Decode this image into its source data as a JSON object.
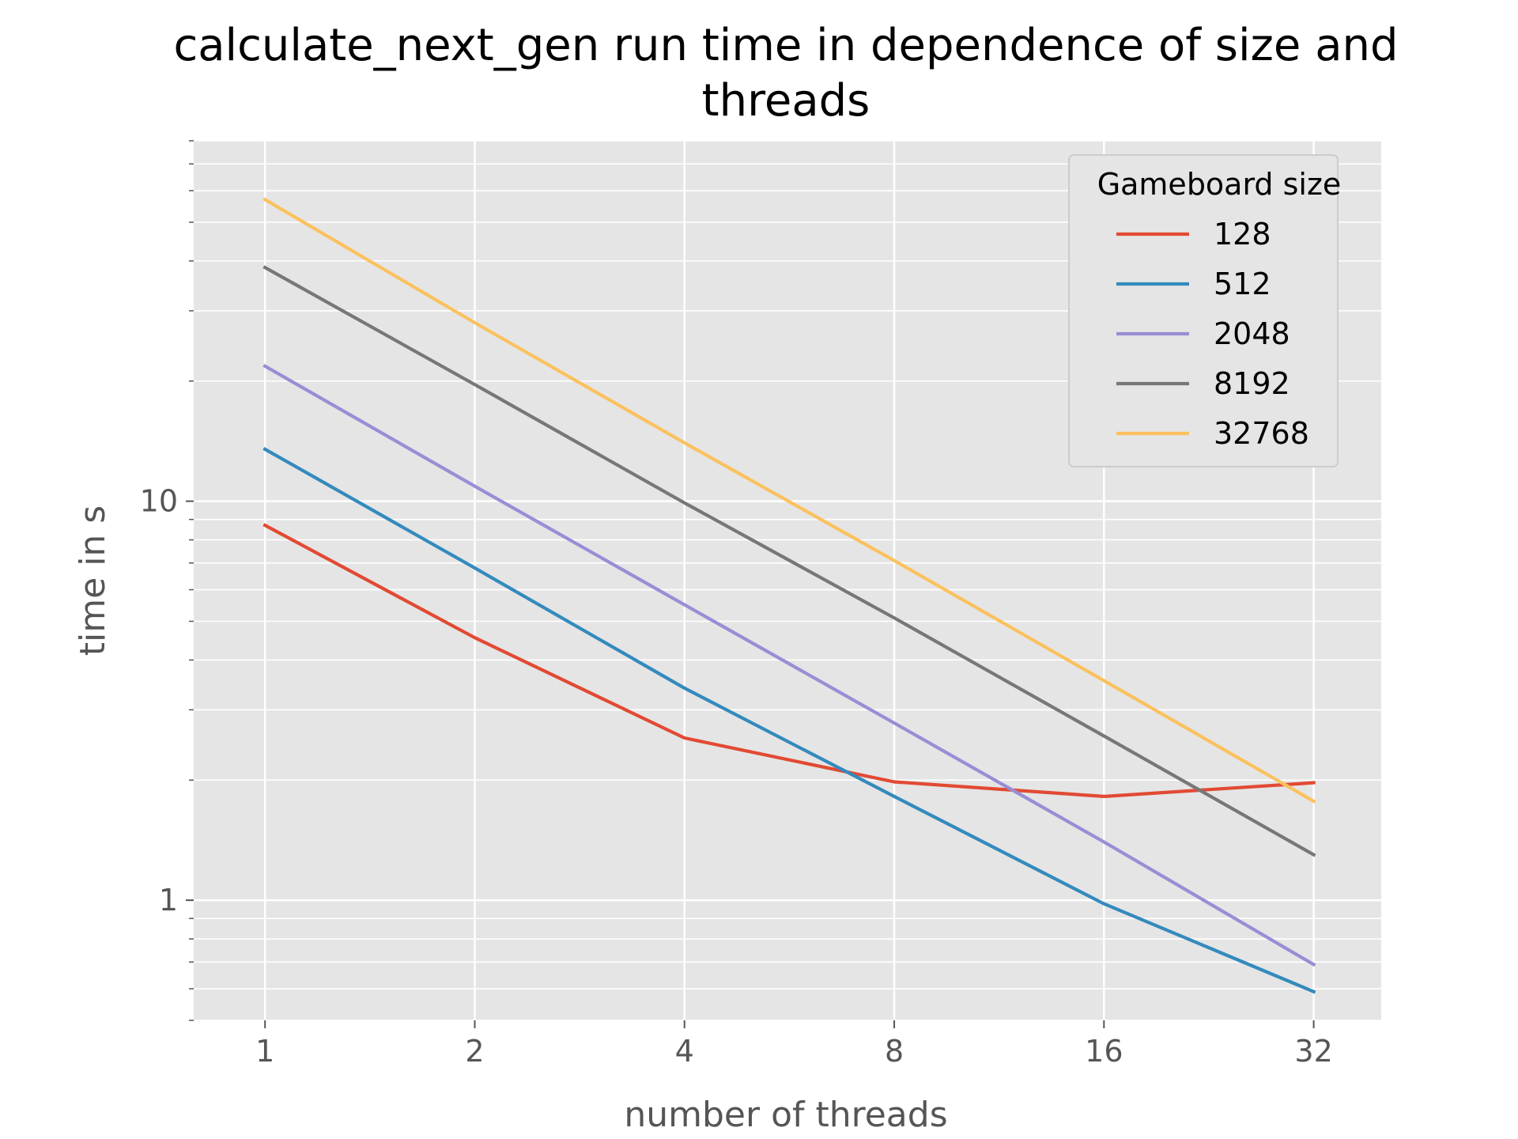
{
  "chart_data": {
    "type": "line",
    "title_lines": [
      "calculate_next_gen run time in dependence of size and",
      "threads"
    ],
    "xlabel": "number of threads",
    "ylabel": "time in s",
    "x_scale": "log2",
    "y_scale": "log10",
    "x": [
      1,
      2,
      4,
      8,
      16,
      32
    ],
    "x_tick_labels": [
      "1",
      "2",
      "4",
      "8",
      "16",
      "32"
    ],
    "y_tick_labels": [
      {
        "value": 1,
        "label": "1"
      },
      {
        "value": 10,
        "label": "10"
      }
    ],
    "xlim": [
      0.79,
      40
    ],
    "ylim": [
      0.5,
      80
    ],
    "grid": true,
    "legend": {
      "title": "Gameboard size",
      "placement": "top-right"
    },
    "series": [
      {
        "name": "128",
        "color": "#E24A33",
        "values": [
          8.7,
          4.55,
          2.55,
          1.98,
          1.82,
          1.97
        ]
      },
      {
        "name": "512",
        "color": "#348ABD",
        "values": [
          13.5,
          6.8,
          3.4,
          1.82,
          0.98,
          0.59
        ]
      },
      {
        "name": "2048",
        "color": "#988ED5",
        "values": [
          21.8,
          10.9,
          5.5,
          2.78,
          1.4,
          0.69
        ]
      },
      {
        "name": "8192",
        "color": "#777777",
        "values": [
          38.5,
          19.6,
          9.9,
          5.1,
          2.58,
          1.3
        ]
      },
      {
        "name": "32768",
        "color": "#FBC15E",
        "values": [
          57.0,
          28.0,
          14.0,
          7.1,
          3.55,
          1.77
        ]
      }
    ]
  }
}
